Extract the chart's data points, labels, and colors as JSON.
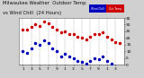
{
  "title_left": "Milwaukee Weather  Outdoor Temp",
  "title_right": "vs Wind Chill  (24 Hours)",
  "bg_color": "#d0d0d0",
  "plot_bg_color": "#ffffff",
  "outdoor_temp_color": "#cc0000",
  "wind_chill_color": "#0000bb",
  "legend_left_color": "#0000bb",
  "legend_right_color": "#cc0000",
  "outdoor_temp": [
    26,
    26,
    28,
    30,
    29,
    32,
    31,
    28,
    26,
    24,
    25,
    23,
    23,
    21,
    20,
    19,
    21,
    23,
    23,
    24,
    21,
    19,
    17,
    16
  ],
  "wind_chill": [
    10,
    9,
    12,
    16,
    15,
    18,
    16,
    12,
    10,
    6,
    8,
    6,
    5,
    3,
    2,
    1,
    3,
    5,
    4,
    6,
    3,
    1,
    -1,
    -2
  ],
  "ylim": [
    0,
    35
  ],
  "yticks": [
    0,
    5,
    10,
    15,
    20,
    25,
    30,
    35
  ],
  "ytick_labels": [
    "0",
    "5",
    "10",
    "15",
    "20",
    "25",
    "30",
    "35"
  ],
  "xlim": [
    0,
    25
  ],
  "x_hours": [
    1,
    2,
    3,
    4,
    5,
    6,
    7,
    8,
    9,
    10,
    11,
    12,
    13,
    14,
    15,
    16,
    17,
    18,
    19,
    20,
    21,
    22,
    23,
    24
  ],
  "xtick_positions": [
    1,
    3,
    5,
    7,
    9,
    11,
    13,
    15,
    17,
    19,
    21,
    23
  ],
  "xtick_labels": [
    "1",
    "3",
    "5",
    "7",
    "9",
    "1",
    "3",
    "5",
    "7",
    "9",
    "1",
    "3"
  ],
  "vgrid_positions": [
    1,
    3,
    5,
    7,
    9,
    11,
    13,
    15,
    17,
    19,
    21,
    23
  ],
  "grid_color": "#999999",
  "marker_size": 1.5,
  "tick_fontsize": 3.2,
  "title_fontsize": 3.8
}
